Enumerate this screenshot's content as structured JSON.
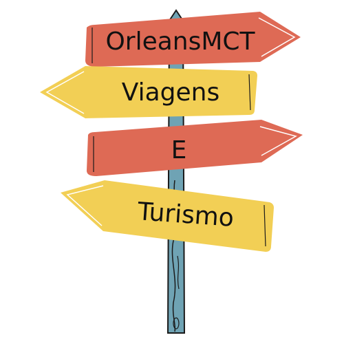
{
  "signs": [
    {
      "text": "OrleansMCT",
      "color": "#de6a55",
      "direction": "right"
    },
    {
      "text": "Viagens",
      "color": "#f2cf55",
      "direction": "left"
    },
    {
      "text": "E",
      "color": "#de6a55",
      "direction": "right"
    },
    {
      "text": "Turismo",
      "color": "#f2cf55",
      "direction": "left"
    }
  ],
  "colors": {
    "post": "#6fa3b4",
    "outline": "#1a1a1a",
    "background": "#ffffff"
  }
}
